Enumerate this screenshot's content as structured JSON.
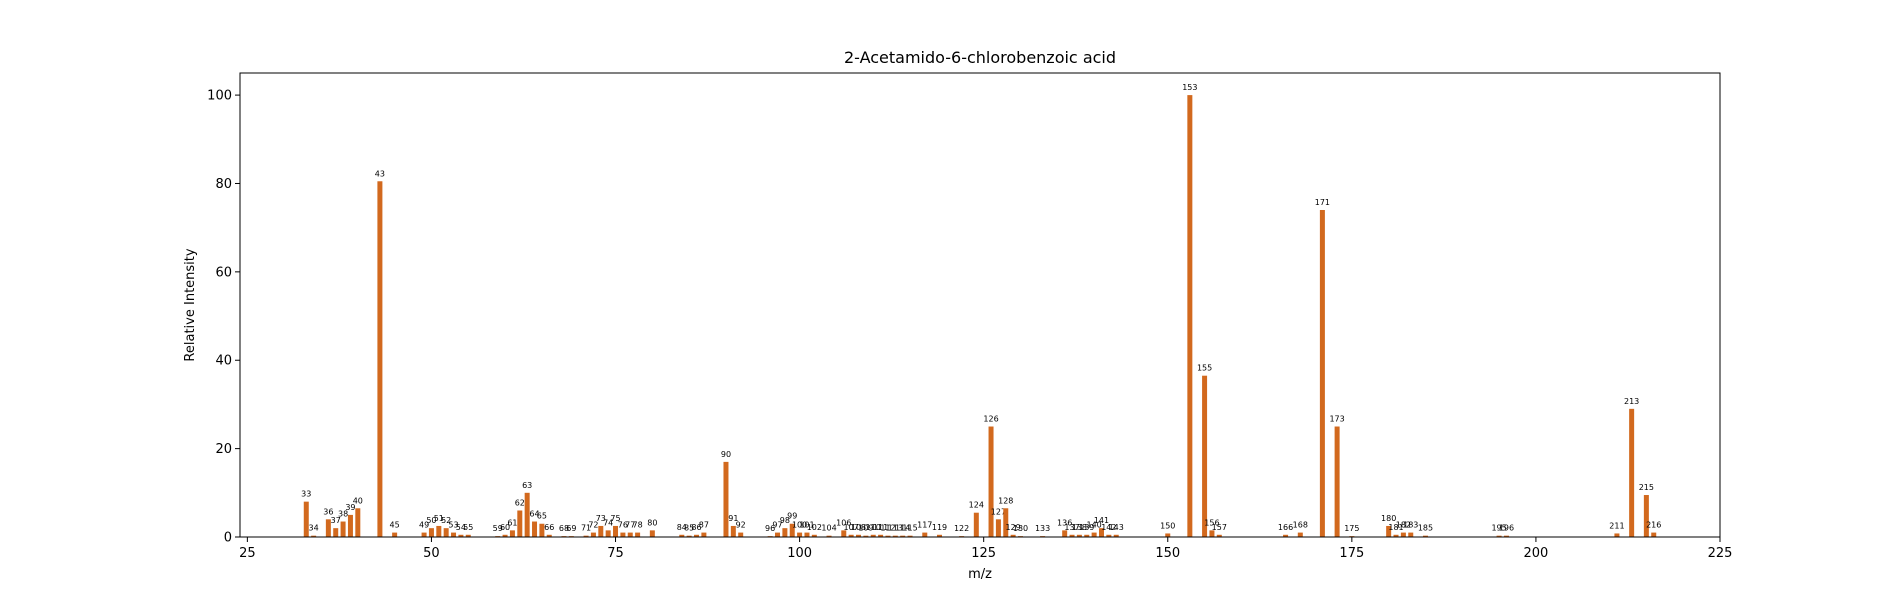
{
  "chart_data": {
    "type": "bar",
    "title": "2-Acetamido-6-chlorobenzoic acid",
    "xlabel": "m/z",
    "ylabel": "Relative Intensity",
    "xlim": [
      24,
      225
    ],
    "ylim": [
      0,
      105
    ],
    "xticks": [
      25,
      50,
      75,
      100,
      125,
      150,
      175,
      200,
      225
    ],
    "yticks": [
      0,
      20,
      40,
      60,
      80,
      100
    ],
    "bar_color": "#d2691e",
    "grid": false,
    "series": [
      {
        "x": [
          33,
          34,
          36,
          37,
          38,
          39,
          40,
          43,
          45,
          49,
          50,
          51,
          52,
          53,
          54,
          55,
          59,
          60,
          61,
          62,
          63,
          64,
          65,
          66,
          68,
          69,
          71,
          72,
          73,
          74,
          75,
          76,
          77,
          78,
          80,
          84,
          85,
          86,
          87,
          90,
          91,
          92,
          96,
          97,
          98,
          99,
          100,
          101,
          102,
          104,
          106,
          107,
          108,
          109,
          110,
          111,
          112,
          113,
          114,
          115,
          117,
          119,
          122,
          124,
          126,
          127,
          128,
          129,
          130,
          133,
          136,
          137,
          138,
          139,
          140,
          141,
          142,
          143,
          150,
          153,
          155,
          156,
          157,
          166,
          168,
          171,
          173,
          175,
          180,
          181,
          182,
          183,
          185,
          195,
          196,
          211,
          213,
          215,
          216
        ],
        "values": [
          8,
          0.3,
          4,
          2,
          3.5,
          5,
          6.5,
          80.5,
          1,
          1,
          2,
          2.5,
          2,
          1,
          0.5,
          0.5,
          0.2,
          0.5,
          1.5,
          6,
          10,
          3.5,
          3,
          0.5,
          0.2,
          0.2,
          0.3,
          1,
          2.5,
          1.5,
          2.5,
          1,
          1,
          1,
          1.5,
          0.5,
          0.3,
          0.5,
          1,
          17,
          2.5,
          1,
          0.2,
          1,
          2,
          3,
          1,
          1,
          0.5,
          0.3,
          1.5,
          0.5,
          0.5,
          0.3,
          0.5,
          0.5,
          0.3,
          0.3,
          0.3,
          0.3,
          1,
          0.5,
          0.2,
          5.5,
          25,
          4,
          6.5,
          0.5,
          0.2,
          0.2,
          1.5,
          0.5,
          0.5,
          0.5,
          1,
          2,
          0.5,
          0.5,
          0.8,
          100,
          36.5,
          1.5,
          0.5,
          0.5,
          1,
          74,
          25,
          0.2,
          2.5,
          0.5,
          1,
          1,
          0.3,
          0.3,
          0.3,
          0.8,
          29,
          9.5,
          1
        ],
        "labels": [
          "33",
          "34",
          "36",
          "37",
          "38",
          "39",
          "40",
          "43",
          "45",
          "49",
          "50",
          "51",
          "52",
          "53",
          "54",
          "55",
          "59",
          "60",
          "61",
          "62",
          "63",
          "64",
          "65",
          "66",
          "68",
          "69",
          "71",
          "72",
          "73",
          "74",
          "75",
          "76",
          "77",
          "78",
          "80",
          "84",
          "85",
          "86",
          "87",
          "90",
          "91",
          "92",
          "96",
          "97",
          "98",
          "99",
          "100",
          "101",
          "102",
          "104",
          "106",
          "107",
          "108",
          "109",
          "110",
          "111",
          "112",
          "113",
          "114",
          "115",
          "117",
          "119",
          "122",
          "124",
          "126",
          "127",
          "128",
          "129",
          "130",
          "133",
          "136",
          "137",
          "138",
          "139",
          "140",
          "141",
          "142",
          "143",
          "150",
          "153",
          "155",
          "156",
          "157",
          "166",
          "168",
          "171",
          "173",
          "175",
          "180",
          "181",
          "182",
          "183",
          "185",
          "195",
          "196",
          "211",
          "213",
          "215",
          "216"
        ]
      }
    ]
  }
}
